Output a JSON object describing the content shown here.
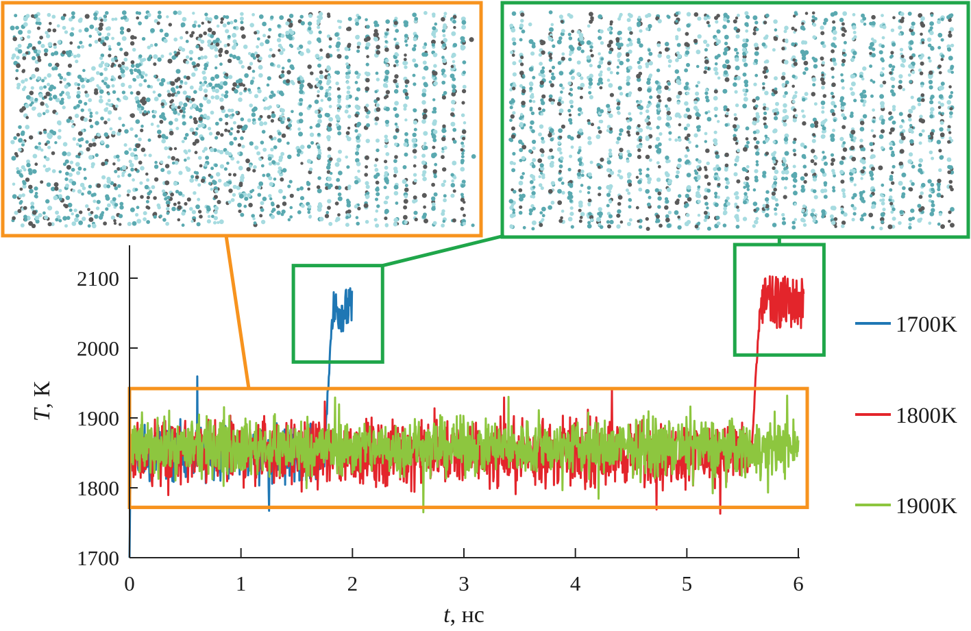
{
  "chart_data": {
    "type": "line",
    "title": "",
    "xlabel": {
      "var": "t",
      "unit": ", нс"
    },
    "ylabel": {
      "var": "T",
      "unit": ", К"
    },
    "xlim": [
      0,
      6
    ],
    "ylim": [
      1700,
      2150
    ],
    "xticks": [
      "0",
      "1",
      "2",
      "3",
      "4",
      "5",
      "6"
    ],
    "yticks": [
      "1700",
      "1800",
      "1900",
      "2000",
      "2100"
    ],
    "grid": false,
    "legend": {
      "position": "right"
    },
    "series": [
      {
        "name": "1700K",
        "color": "#1f77b4",
        "baseline": 1850,
        "amplitude": 45,
        "transition": {
          "start": 1.75,
          "end": 1.82
        },
        "after_level": 2055,
        "after_amplitude": 32,
        "t_end": 2.0
      },
      {
        "name": "1800K",
        "color": "#e3252b",
        "baseline": 1850,
        "amplitude": 55,
        "transition": {
          "start": 5.58,
          "end": 5.66
        },
        "after_level": 2065,
        "after_amplitude": 38,
        "t_end": 6.05
      },
      {
        "name": "1900K",
        "color": "#8dc63f",
        "baseline": 1858,
        "amplitude": 48,
        "t_end": 6.0
      }
    ],
    "annotations": [
      {
        "kind": "zoom-box",
        "color": "#f7931e",
        "x": [
          0.0,
          6.08
        ],
        "y": [
          1772,
          1942
        ],
        "inset": "left"
      },
      {
        "kind": "zoom-box",
        "color": "#1fa64a",
        "x": [
          1.47,
          2.27
        ],
        "y": [
          1980,
          2118
        ],
        "inset": "right"
      },
      {
        "kind": "zoom-box",
        "color": "#1fa64a",
        "x": [
          5.43,
          6.23
        ],
        "y": [
          1990,
          2148
        ],
        "inset": "right"
      }
    ]
  },
  "insets": [
    {
      "name": "liquid-structure",
      "color": "#f7931e",
      "structure": "disordered"
    },
    {
      "name": "crystal-structure",
      "color": "#1fa64a",
      "structure": "ordered"
    }
  ],
  "colors": {
    "orange_box": "#f7931e",
    "green_box": "#1fa64a",
    "atom_light": "#a6dbe0",
    "atom_mid": "#5aa9b0",
    "atom_dark": "#5a5a5a"
  }
}
